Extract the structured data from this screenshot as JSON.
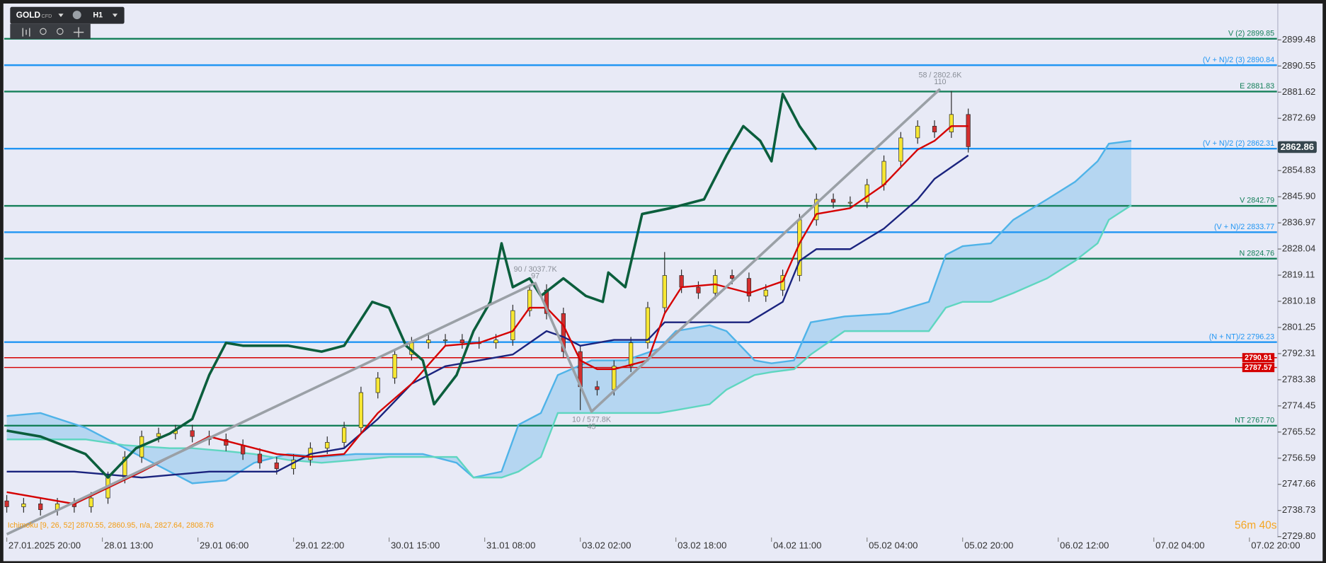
{
  "toolbar": {
    "symbol": "GOLD",
    "market": "CFD",
    "timeframe": "H1"
  },
  "chart_data": {
    "type": "candlestick",
    "x": [
      0,
      3,
      6,
      9,
      12,
      15,
      18,
      21,
      24,
      27,
      30,
      33,
      36,
      39,
      42,
      45,
      48,
      51,
      54,
      57,
      60,
      63,
      66,
      69,
      72,
      75,
      78,
      81,
      84,
      87,
      90,
      93,
      96,
      99,
      102,
      105,
      108,
      111,
      114,
      117,
      120,
      123,
      126,
      129,
      132,
      135,
      138,
      141,
      144,
      147,
      150,
      153,
      156,
      159,
      162,
      165,
      168,
      171
    ],
    "open": [
      2742,
      2740,
      2741,
      2739,
      2741,
      2740,
      2743,
      2750,
      2757,
      2764,
      2765,
      2766,
      2764,
      2763,
      2761,
      2758,
      2755,
      2753,
      2756,
      2760,
      2762,
      2767,
      2779,
      2784,
      2792,
      2796,
      2797,
      2797,
      2796,
      2796,
      2797,
      2807,
      2814,
      2806,
      2793,
      2781,
      2780,
      2788,
      2796,
      2808,
      2819,
      2815,
      2813,
      2819,
      2818,
      2812,
      2814,
      2819,
      2838,
      2845,
      2844,
      2844,
      2850,
      2858,
      2866,
      2870,
      2868,
      2874
    ],
    "high": [
      2744,
      2743,
      2743,
      2743,
      2743,
      2745,
      2752,
      2759,
      2766,
      2767,
      2768,
      2768,
      2766,
      2765,
      2763,
      2760,
      2757,
      2758,
      2762,
      2764,
      2769,
      2781,
      2786,
      2794,
      2798,
      2799,
      2799,
      2799,
      2798,
      2799,
      2809,
      2816,
      2816,
      2808,
      2795,
      2783,
      2790,
      2798,
      2810,
      2827,
      2821,
      2817,
      2821,
      2821,
      2820,
      2816,
      2821,
      2840,
      2847,
      2847,
      2846,
      2852,
      2860,
      2868,
      2872,
      2872,
      2882,
      2876
    ],
    "low": [
      2738,
      2738,
      2737,
      2737,
      2738,
      2738,
      2741,
      2748,
      2755,
      2762,
      2763,
      2762,
      2761,
      2759,
      2756,
      2753,
      2751,
      2751,
      2754,
      2758,
      2760,
      2765,
      2777,
      2782,
      2790,
      2794,
      2795,
      2794,
      2794,
      2794,
      2795,
      2805,
      2804,
      2791,
      2773,
      2778,
      2778,
      2786,
      2794,
      2806,
      2813,
      2811,
      2811,
      2816,
      2810,
      2810,
      2812,
      2817,
      2836,
      2842,
      2842,
      2842,
      2848,
      2856,
      2864,
      2866,
      2866,
      2861
    ],
    "close": [
      2740,
      2741,
      2739,
      2741,
      2740,
      2743,
      2750,
      2757,
      2764,
      2765,
      2766,
      2764,
      2763,
      2761,
      2758,
      2755,
      2753,
      2756,
      2760,
      2762,
      2767,
      2779,
      2784,
      2792,
      2796,
      2797,
      2797,
      2796,
      2796,
      2797,
      2807,
      2814,
      2806,
      2793,
      2781,
      2780,
      2788,
      2796,
      2808,
      2819,
      2815,
      2813,
      2819,
      2818,
      2812,
      2814,
      2819,
      2838,
      2845,
      2844,
      2844,
      2850,
      2858,
      2866,
      2870,
      2868,
      2874,
      2863
    ],
    "up_color": "#f7e733",
    "down_color": "#d32f2f",
    "wick_color": "#2a2a2a",
    "xlim": [
      -0.45,
      225.9
    ],
    "xticks": [
      {
        "value": 0,
        "label": "27.01.2025 20:00"
      },
      {
        "value": 17,
        "label": "28.01 13:00"
      },
      {
        "value": 34,
        "label": "29.01 06:00"
      },
      {
        "value": 51,
        "label": "29.01 22:00"
      },
      {
        "value": 68,
        "label": "30.01 15:00"
      },
      {
        "value": 85,
        "label": "31.01 08:00"
      },
      {
        "value": 102,
        "label": "03.02 02:00"
      },
      {
        "value": 119,
        "label": "03.02 18:00"
      },
      {
        "value": 136,
        "label": "04.02 11:00"
      },
      {
        "value": 153,
        "label": "05.02 04:00"
      },
      {
        "value": 170,
        "label": "05.02 20:00"
      },
      {
        "value": 187,
        "label": "06.02 12:00"
      },
      {
        "value": 204,
        "label": "07.02 04:00"
      },
      {
        "value": 221,
        "label": "07.02 20:00"
      }
    ],
    "ylim": [
      2729.5,
      2911.6
    ],
    "yticks": [
      2899.48,
      2890.55,
      2881.62,
      2872.69,
      2854.83,
      {
        "value": 2845.9,
        "label": "2845.90"
      },
      2836.97,
      2828.04,
      2819.11,
      2810.18,
      2801.25,
      2792.31,
      2783.38,
      2774.45,
      2765.52,
      2756.59,
      2747.66,
      2738.73,
      {
        "value": 2729.8,
        "label": "2729.80"
      }
    ],
    "levels": [
      {
        "value": 2899.85,
        "label": "V (2) 2899.85",
        "color": "#15805a"
      },
      {
        "value": 2890.84,
        "label": "(V + N)/2 (3) 2890.84",
        "color": "#2196f3"
      },
      {
        "value": 2881.83,
        "label": "E 2881.83",
        "color": "#15805a"
      },
      {
        "value": 2862.31,
        "label": "(V + N)/2 (2) 2862.31",
        "color": "#2196f3"
      },
      {
        "value": 2842.79,
        "label": "V 2842.79",
        "color": "#15805a"
      },
      {
        "value": 2833.77,
        "label": "(V + N)/2 2833.77",
        "color": "#2196f3"
      },
      {
        "value": 2824.76,
        "label": "N 2824.76",
        "color": "#15805a"
      },
      {
        "value": 2796.23,
        "label": "(N + NT)/2 2796.23",
        "color": "#2196f3"
      },
      {
        "value": 2767.7,
        "label": "NT 2767.70",
        "color": "#15805a"
      }
    ],
    "price_tags": [
      2790.91,
      2787.57
    ],
    "price_tag_color": "#d50000",
    "current_price": 2862.86,
    "current_price_color": "#37474f",
    "cloud_color": "rgba(120,190,235,0.45)",
    "ichimoku": [
      {
        "color": "#4fb3e8",
        "width": 2,
        "x": [
          0,
          6,
          14,
          21,
          29,
          33,
          39,
          44,
          50,
          56,
          62,
          68,
          74,
          80,
          83,
          88,
          91,
          95,
          98,
          104,
          110,
          116,
          119,
          125,
          128,
          133,
          136,
          140,
          143,
          149,
          157,
          164,
          167,
          170,
          175,
          179,
          185,
          190,
          194,
          196,
          200
        ],
        "values": [
          2771,
          2772,
          2767,
          2760,
          2752,
          2748,
          2749,
          2755,
          2758,
          2757,
          2758,
          2758,
          2758,
          2755,
          2750,
          2752,
          2768,
          2772,
          2785,
          2790,
          2790,
          2794,
          2800,
          2802,
          2800,
          2790,
          2789,
          2790,
          2803,
          2805,
          2806,
          2810,
          2826,
          2829,
          2830,
          2838,
          2845,
          2851,
          2858,
          2864,
          2865
        ]
      },
      {
        "color": "#5fd6c0",
        "width": 2,
        "x": [
          0,
          6,
          14,
          21,
          29,
          33,
          39,
          44,
          50,
          56,
          62,
          68,
          74,
          80,
          83,
          88,
          91,
          95,
          98,
          104,
          110,
          116,
          119,
          125,
          128,
          133,
          136,
          140,
          143,
          149,
          157,
          164,
          167,
          170,
          175,
          179,
          185,
          190,
          194,
          196,
          200
        ],
        "values": [
          2763,
          2763,
          2763,
          2761,
          2760,
          2760,
          2759,
          2758,
          2756,
          2755,
          2756,
          2757,
          2757,
          2757,
          2750,
          2750,
          2752,
          2757,
          2772,
          2772,
          2772,
          2772,
          2773,
          2775,
          2780,
          2785,
          2786,
          2787,
          2792,
          2800,
          2800,
          2800,
          2808,
          2810,
          2810,
          2813,
          2818,
          2824,
          2830,
          2838,
          2843
        ]
      },
      {
        "color": "#1a237e",
        "width": 2,
        "x": [
          0,
          12,
          24,
          36,
          48,
          54,
          60,
          66,
          72,
          78,
          84,
          90,
          96,
          99,
          102,
          108,
          114,
          117,
          126,
          132,
          138,
          141,
          144,
          150,
          156,
          162,
          165,
          171
        ],
        "values": [
          2752,
          2752,
          2750,
          2752,
          2752,
          2758,
          2760,
          2770,
          2782,
          2788,
          2790,
          2792,
          2800,
          2798,
          2795,
          2797,
          2797,
          2803,
          2803,
          2803,
          2810,
          2824,
          2828,
          2828,
          2835,
          2845,
          2852,
          2860
        ]
      },
      {
        "color": "#d50000",
        "width": 2,
        "x": [
          0,
          12,
          24,
          36,
          48,
          54,
          60,
          66,
          72,
          78,
          84,
          90,
          93,
          96,
          99,
          102,
          105,
          108,
          114,
          117,
          120,
          126,
          132,
          138,
          141,
          144,
          150,
          156,
          162,
          165,
          168,
          171
        ],
        "values": [
          2745,
          2741,
          2752,
          2764,
          2758,
          2757,
          2758,
          2772,
          2782,
          2795,
          2796,
          2800,
          2808,
          2808,
          2802,
          2790,
          2787,
          2787,
          2790,
          2806,
          2815,
          2816,
          2813,
          2817,
          2830,
          2840,
          2842,
          2850,
          2862,
          2865,
          2870,
          2870
        ]
      },
      {
        "color": "#0b5e3c",
        "width": 3,
        "x": [
          0,
          6,
          14,
          18,
          23,
          29,
          33,
          36,
          39,
          42,
          50,
          56,
          60,
          65,
          68,
          71,
          74,
          76,
          80,
          83,
          86,
          88,
          90,
          93,
          95,
          99,
          103,
          106,
          107,
          110,
          113,
          118,
          124,
          128,
          131,
          134,
          136,
          138,
          141,
          144
        ],
        "values": [
          2766,
          2764,
          2758,
          2750,
          2760,
          2765,
          2770,
          2785,
          2796,
          2795,
          2795,
          2793,
          2795,
          2810,
          2808,
          2795,
          2790,
          2775,
          2785,
          2800,
          2810,
          2830,
          2815,
          2818,
          2812,
          2818,
          2812,
          2810,
          2820,
          2815,
          2840,
          2842,
          2845,
          2860,
          2870,
          2865,
          2858,
          2881,
          2870,
          2862
        ]
      }
    ],
    "zigzag": {
      "color": "#9aa0a6",
      "x": [
        0,
        94,
        104,
        166
      ],
      "values": [
        2730.6,
        2816.4,
        2772.5,
        2882.7
      ]
    },
    "zigzag_labels": [
      null,
      [
        "90 / 3037.7K",
        "97"
      ],
      [
        "10 / 577.8K",
        "45"
      ],
      [
        "58 / 2802.6K",
        "110"
      ]
    ],
    "indicator_legend": "Ichimoku [9, 26, 52] 2870.55, 2860.95, n/a, 2827.64, 2808.76",
    "timer": "56m 40s"
  }
}
